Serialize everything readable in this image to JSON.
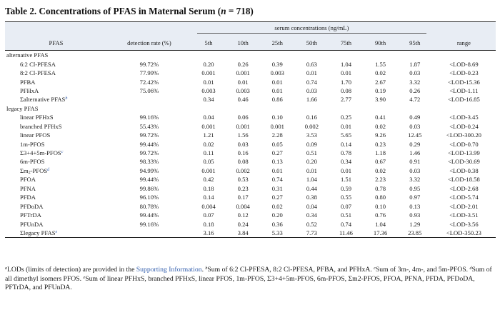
{
  "title": {
    "prefix": "Table 2. Concentrations of PFAS in Maternal Serum (",
    "n_label": "n",
    "suffix": " = 718)"
  },
  "header": {
    "col_pfas": "PFAS",
    "col_detection": "detection rate (%)",
    "span_label": "serum concentrations (ng/mL)",
    "percentiles": [
      "5th",
      "10th",
      "25th",
      "50th",
      "75th",
      "90th",
      "95th"
    ],
    "col_range": "range"
  },
  "groups": {
    "alternative": "alternative PFAS",
    "legacy": "legacy PFAS"
  },
  "alt_rows": [
    {
      "name": "6:2 Cl-PFESA",
      "rate": "99.72%",
      "v": [
        "0.20",
        "0.26",
        "0.39",
        "0.63",
        "1.04",
        "1.55",
        "1.87"
      ],
      "range": "<LOD-8.69"
    },
    {
      "name": "8:2 Cl-PFESA",
      "rate": "77.99%",
      "v": [
        "0.001",
        "0.001",
        "0.003",
        "0.01",
        "0.01",
        "0.02",
        "0.03"
      ],
      "range": "<LOD-0.23"
    },
    {
      "name": "PFBA",
      "rate": "72.42%",
      "v": [
        "0.01",
        "0.01",
        "0.01",
        "0.74",
        "1.70",
        "2.67",
        "3.32"
      ],
      "range": "<LOD-15.36"
    },
    {
      "name": "PFHxA",
      "rate": "75.06%",
      "v": [
        "0.003",
        "0.003",
        "0.01",
        "0.03",
        "0.08",
        "0.19",
        "0.26"
      ],
      "range": "<LOD-1.11"
    },
    {
      "name": "Σalternative PFAS",
      "rate": "",
      "v": [
        "0.34",
        "0.46",
        "0.86",
        "1.66",
        "2.77",
        "3.90",
        "4.72"
      ],
      "range": "<LOD-16.85"
    }
  ],
  "legacy_rows": [
    {
      "name": "linear PFHxS",
      "rate": "99.16%",
      "v": [
        "0.04",
        "0.06",
        "0.10",
        "0.16",
        "0.25",
        "0.41",
        "0.49"
      ],
      "range": "<LOD-3.45"
    },
    {
      "name": "branched PFHxS",
      "rate": "55.43%",
      "v": [
        "0.001",
        "0.001",
        "0.001",
        "0.002",
        "0.01",
        "0.02",
        "0.03"
      ],
      "range": "<LOD-0.24"
    },
    {
      "name": "linear PFOS",
      "rate": "99.72%",
      "v": [
        "1.21",
        "1.56",
        "2.28",
        "3.53",
        "5.65",
        "9.26",
        "12.45"
      ],
      "range": "<LOD-300.20"
    },
    {
      "name": "1m-PFOS",
      "rate": "99.44%",
      "v": [
        "0.02",
        "0.03",
        "0.05",
        "0.09",
        "0.14",
        "0.23",
        "0.29"
      ],
      "range": "<LOD-0.70"
    },
    {
      "name": "Σ3+4+5m-PFOS",
      "rate": "99.72%",
      "v": [
        "0.11",
        "0.16",
        "0.27",
        "0.51",
        "0.78",
        "1.18",
        "1.46"
      ],
      "range": "<LOD-13.99"
    },
    {
      "name": "6m-PFOS",
      "rate": "98.33%",
      "v": [
        "0.05",
        "0.08",
        "0.13",
        "0.20",
        "0.34",
        "0.67",
        "0.91"
      ],
      "range": "<LOD-30.69"
    },
    {
      "name": "Σm2-PFOS",
      "rate": "94.99%",
      "v": [
        "0.001",
        "0.002",
        "0.01",
        "0.01",
        "0.01",
        "0.02",
        "0.03"
      ],
      "range": "<LOD-0.38"
    },
    {
      "name": "PFOA",
      "rate": "99.44%",
      "v": [
        "0.42",
        "0.53",
        "0.74",
        "1.04",
        "1.51",
        "2.23",
        "3.32"
      ],
      "range": "<LOD-18.58"
    },
    {
      "name": "PFNA",
      "rate": "99.86%",
      "v": [
        "0.18",
        "0.23",
        "0.31",
        "0.44",
        "0.59",
        "0.78",
        "0.95"
      ],
      "range": "<LOD-2.68"
    },
    {
      "name": "PFDA",
      "rate": "96.10%",
      "v": [
        "0.14",
        "0.17",
        "0.27",
        "0.38",
        "0.55",
        "0.80",
        "0.97"
      ],
      "range": "<LOD-5.74"
    },
    {
      "name": "PFDoDA",
      "rate": "80.78%",
      "v": [
        "0.004",
        "0.004",
        "0.02",
        "0.04",
        "0.07",
        "0.10",
        "0.13"
      ],
      "range": "<LOD-2.01"
    },
    {
      "name": "PFTrDA",
      "rate": "99.44%",
      "v": [
        "0.07",
        "0.12",
        "0.20",
        "0.34",
        "0.51",
        "0.76",
        "0.93"
      ],
      "range": "<LOD-3.51"
    },
    {
      "name": "PFUnDA",
      "rate": "99.16%",
      "v": [
        "0.18",
        "0.24",
        "0.36",
        "0.52",
        "0.74",
        "1.04",
        "1.29"
      ],
      "range": "<LOD-3.56"
    },
    {
      "name": "Σlegacy PFAS",
      "rate": "",
      "v": [
        "3.16",
        "3.84",
        "5.33",
        "7.73",
        "11.46",
        "17.36",
        "23.85"
      ],
      "range": "<LOD-350.23"
    }
  ],
  "footnotes": {
    "a_mark": "a",
    "a_text_1": "LODs (limits of detection) are provided in the ",
    "a_link": "Supporting Information",
    "a_text_2": ". ",
    "b_mark": "b",
    "b_text": "Sum of 6:2 Cl-PFESA, 8:2 Cl-PFESA, PFBA, and PFHxA. ",
    "c_mark": "c",
    "c_text": "Sum of 3m-, 4m-, and 5m-PFOS. ",
    "d_mark": "d",
    "d_text": "Sum of all dimethyl isomers PFOS. ",
    "e_mark": "e",
    "e_text": "Sum of linear PFHxS, branched PFHxS, linear PFOS, 1m-PFOS, Σ3+4+5m-PFOS, 6m-PFOS, Σm2-PFOS, PFOA, PFNA, PFDA, PFDoDA, PFTrDA, and PFUnDA."
  }
}
